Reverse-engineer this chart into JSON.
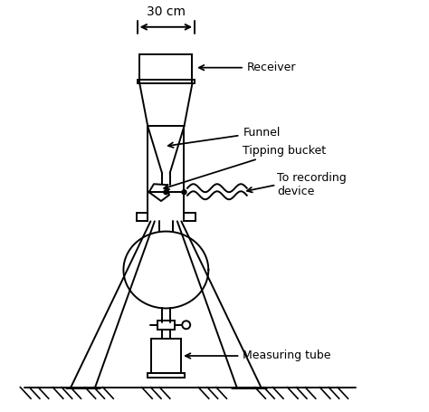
{
  "bg_color": "#ffffff",
  "line_color": "#000000",
  "lw": 1.4,
  "labels": {
    "receiver": "Receiver",
    "funnel": "Funnel",
    "tipping_bucket": "Tipping bucket",
    "to_recording": "To recording\ndevice",
    "measuring_tube": "Measuring tube",
    "width_label": "30 cm"
  },
  "font_size": 9,
  "fig_width": 4.74,
  "fig_height": 4.55,
  "dpi": 100
}
